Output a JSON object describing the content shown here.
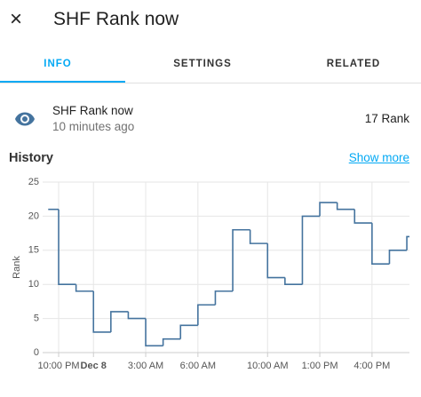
{
  "header": {
    "close_icon": "×",
    "title": "SHF Rank now"
  },
  "tabs": [
    "INFO",
    "SETTINGS",
    "RELATED"
  ],
  "entity": {
    "name": "SHF Rank now",
    "last_changed": "10 minutes ago",
    "state": "17 Rank"
  },
  "history": {
    "title": "History",
    "show_more": "Show more"
  },
  "chart_data": {
    "type": "step",
    "y_label": "Rank",
    "color": "#44739e",
    "grid": true,
    "x": [
      21.4,
      22,
      23,
      24,
      25,
      26,
      27,
      28,
      29,
      30,
      31,
      32,
      33,
      34,
      35,
      36,
      37,
      38,
      39,
      40,
      41,
      42
    ],
    "values": [
      21,
      10,
      9,
      3,
      6,
      5,
      1,
      2,
      4,
      7,
      9,
      18,
      16,
      11,
      10,
      20,
      22,
      21,
      19,
      13,
      15,
      17
    ],
    "xlim": [
      21.08,
      42.15
    ],
    "xticks": [
      {
        "value": 22,
        "label": "10:00 PM"
      },
      {
        "value": 24,
        "label": "Dec 8"
      },
      {
        "value": 27,
        "label": "3:00 AM"
      },
      {
        "value": 30,
        "label": "6:00 AM"
      },
      {
        "value": 34,
        "label": "10:00 AM"
      },
      {
        "value": 37,
        "label": "1:00 PM"
      },
      {
        "value": 40,
        "label": "4:00 PM"
      }
    ],
    "ylim": [
      0,
      25
    ],
    "yticks": [
      0,
      5,
      10,
      15,
      20,
      25
    ]
  }
}
